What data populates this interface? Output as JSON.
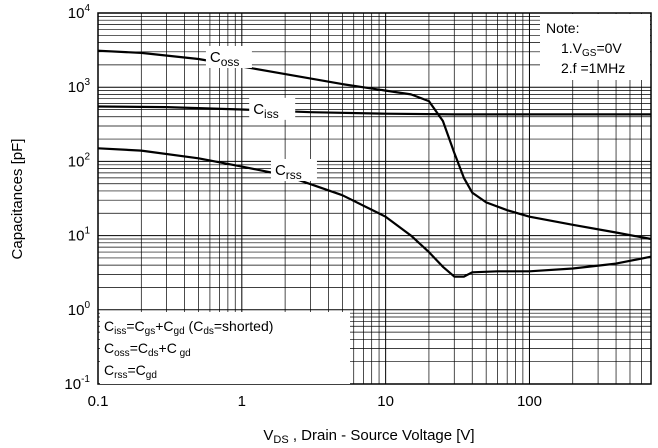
{
  "chart_data": {
    "type": "line",
    "xscale": "log",
    "yscale": "log",
    "xlim": [
      0.1,
      700
    ],
    "ylim": [
      0.1,
      10000
    ],
    "grid": true,
    "xlabel": {
      "pre": "V",
      "sub": "DS",
      "post": " , Drain - Source Voltage [V]"
    },
    "ylabel": "Capacitances [pF]",
    "x_ticks": [
      {
        "value": 0.1,
        "label": "0.1"
      },
      {
        "value": 1,
        "label": "1"
      },
      {
        "value": 10,
        "label": "10"
      },
      {
        "value": 100,
        "label": "100"
      }
    ],
    "y_ticks": [
      {
        "value": 0.1,
        "base": "10",
        "exp": "-1"
      },
      {
        "value": 1,
        "base": "10",
        "exp": "0"
      },
      {
        "value": 10,
        "base": "10",
        "exp": "1"
      },
      {
        "value": 100,
        "base": "10",
        "exp": "2"
      },
      {
        "value": 1000,
        "base": "10",
        "exp": "3"
      },
      {
        "value": 10000,
        "base": "10",
        "exp": "4"
      }
    ],
    "series": [
      {
        "name": "Coss",
        "label_main": "C",
        "label_sub": "oss",
        "label_at": [
          0.6,
          2400
        ],
        "points": [
          [
            0.1,
            3100
          ],
          [
            0.2,
            2900
          ],
          [
            0.5,
            2400
          ],
          [
            1,
            1900
          ],
          [
            2,
            1500
          ],
          [
            5,
            1100
          ],
          [
            10,
            900
          ],
          [
            15,
            800
          ],
          [
            20,
            650
          ],
          [
            25,
            350
          ],
          [
            30,
            130
          ],
          [
            35,
            60
          ],
          [
            40,
            38
          ],
          [
            50,
            28
          ],
          [
            70,
            22
          ],
          [
            100,
            18
          ],
          [
            200,
            14
          ],
          [
            400,
            11
          ],
          [
            700,
            9
          ]
        ]
      },
      {
        "name": "Ciss",
        "label_main": "C",
        "label_sub": "iss",
        "label_at": [
          1.2,
          480
        ],
        "points": [
          [
            0.1,
            550
          ],
          [
            0.3,
            540
          ],
          [
            1,
            500
          ],
          [
            3,
            460
          ],
          [
            10,
            440
          ],
          [
            30,
            430
          ],
          [
            100,
            430
          ],
          [
            700,
            430
          ]
        ]
      },
      {
        "name": "Crss",
        "label_main": "C",
        "label_sub": "rss",
        "label_at": [
          1.7,
          72
        ],
        "points": [
          [
            0.1,
            150
          ],
          [
            0.2,
            140
          ],
          [
            0.5,
            110
          ],
          [
            1,
            85
          ],
          [
            2,
            65
          ],
          [
            5,
            35
          ],
          [
            10,
            18
          ],
          [
            15,
            10
          ],
          [
            20,
            6
          ],
          [
            25,
            3.8
          ],
          [
            30,
            2.8
          ],
          [
            35,
            2.8
          ],
          [
            40,
            3.2
          ],
          [
            60,
            3.3
          ],
          [
            100,
            3.3
          ],
          [
            200,
            3.6
          ],
          [
            400,
            4.2
          ],
          [
            700,
            5.2
          ]
        ]
      }
    ],
    "note": {
      "title": "Note:",
      "line1_pre": "1.V",
      "line1_sub": "GS",
      "line1_post": "=0V",
      "line2": "2.f =1MHz"
    },
    "legend": {
      "line1": {
        "c1": "C",
        "s1": "iss",
        "mid1": "=C",
        "s2": "gs",
        "mid2": "+C",
        "s3": "gd",
        "mid3": "  (C",
        "s4": "ds",
        "post": "=shorted)"
      },
      "line2": {
        "c1": "C",
        "s1": "oss",
        "mid1": "=C",
        "s2": "ds",
        "mid2": "+C",
        "s3": " gd"
      },
      "line3": {
        "c1": "C",
        "s1": "rss",
        "mid1": "=C",
        "s2": "gd"
      }
    }
  }
}
